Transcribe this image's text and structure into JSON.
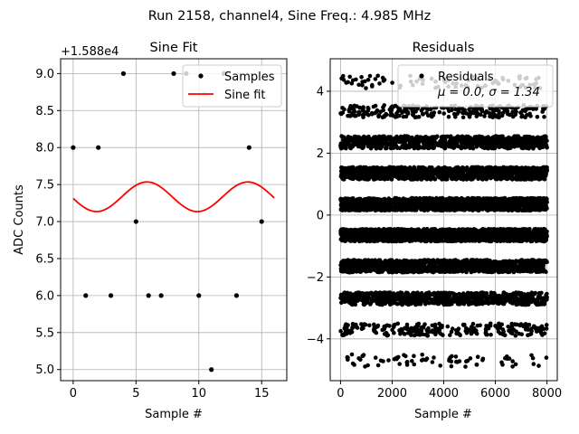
{
  "figure": {
    "suptitle": "Run 2158, channel4, Sine Freq.: 4.985 MHz"
  },
  "chart_data": [
    {
      "type": "scatter",
      "title": "Sine Fit",
      "xlabel": "Sample #",
      "ylabel": "ADC Counts",
      "offset_label": "+1.588e4",
      "xlim": [
        -1,
        17
      ],
      "ylim": [
        4.85,
        9.2
      ],
      "xticks": [
        0,
        5,
        10,
        15
      ],
      "yticks": [
        5.0,
        5.5,
        6.0,
        6.5,
        7.0,
        7.5,
        8.0,
        8.5,
        9.0
      ],
      "ytick_labels": [
        "5.0",
        "5.5",
        "6.0",
        "6.5",
        "7.0",
        "7.5",
        "8.0",
        "8.5",
        "9.0"
      ],
      "grid": true,
      "legend_position": "top-right",
      "series": [
        {
          "name": "Samples",
          "kind": "points",
          "color": "#000000",
          "x": [
            0,
            1,
            2,
            3,
            4,
            5,
            6,
            7,
            8,
            9,
            10,
            11,
            12,
            13,
            14,
            15
          ],
          "y": [
            8,
            6,
            8,
            6,
            9,
            7,
            6,
            6,
            9,
            9,
            6,
            5,
            9,
            6,
            8,
            7
          ]
        },
        {
          "name": "Sine fit",
          "kind": "line",
          "color": "#ff0000",
          "function": {
            "mean": 7.335,
            "amplitude": 0.2,
            "frequency_per_sample": 0.124625,
            "phase": -3.03
          },
          "x_range": [
            0,
            16
          ]
        }
      ]
    },
    {
      "type": "scatter",
      "title": "Residuals",
      "xlabel": "Sample #",
      "ylabel": "",
      "xlim": [
        -400,
        8400
      ],
      "ylim": [
        -5.35,
        5.05
      ],
      "xticks": [
        0,
        2000,
        4000,
        6000,
        8000
      ],
      "yticks": [
        -4,
        -2,
        0,
        2,
        4
      ],
      "grid": true,
      "legend_position": "top-right",
      "legend": {
        "name": "Residuals",
        "stats": "μ = 0.0, σ = 1.34"
      },
      "n_samples": 8000,
      "residual_levels": [
        -4.7,
        -3.7,
        -2.7,
        -1.65,
        -0.65,
        0.35,
        1.35,
        2.35,
        3.35,
        4.3
      ],
      "level_weights": [
        0.01,
        0.03,
        0.1,
        0.16,
        0.2,
        0.2,
        0.16,
        0.1,
        0.03,
        0.01
      ],
      "level_spread": 0.2,
      "mean": 0.0,
      "std": 1.34,
      "color": "#000000"
    }
  ]
}
